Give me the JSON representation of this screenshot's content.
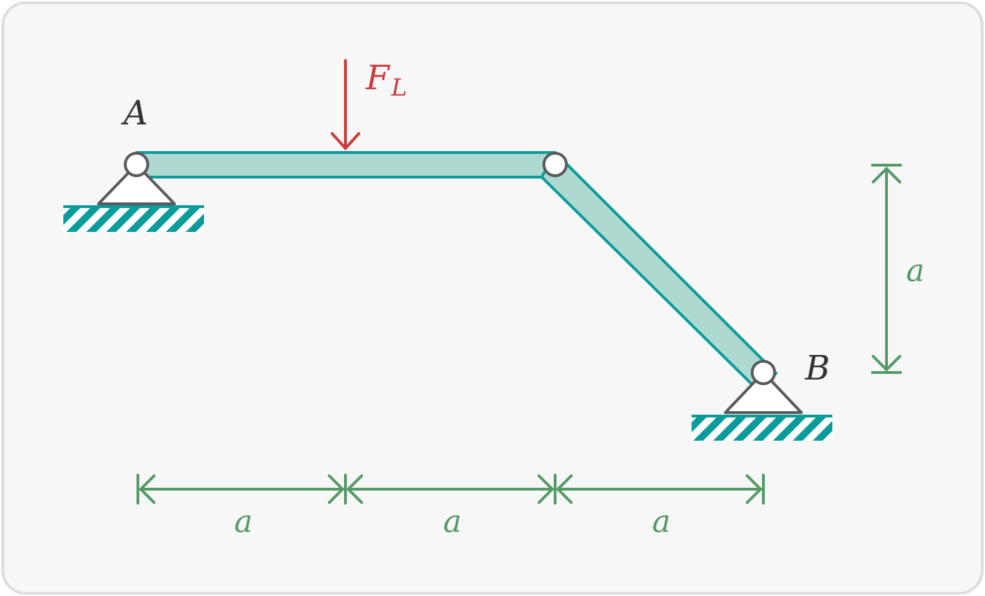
{
  "labels": {
    "support_a": "A",
    "support_b": "B",
    "force_main": "F",
    "force_sub": "L",
    "dim_1": "a",
    "dim_2": "a",
    "dim_3": "a",
    "dim_vertical": "a"
  },
  "colors": {
    "background": "#f7f7f7",
    "frame_border": "#dddddd",
    "member_fill": "#aed9d1",
    "member_stroke": "#0a9b9b",
    "ground_hatch": "#0a9b9b",
    "support": "#5a5a5a",
    "force": "#cc3b3b",
    "dimension": "#559966",
    "label": "#333333"
  }
}
